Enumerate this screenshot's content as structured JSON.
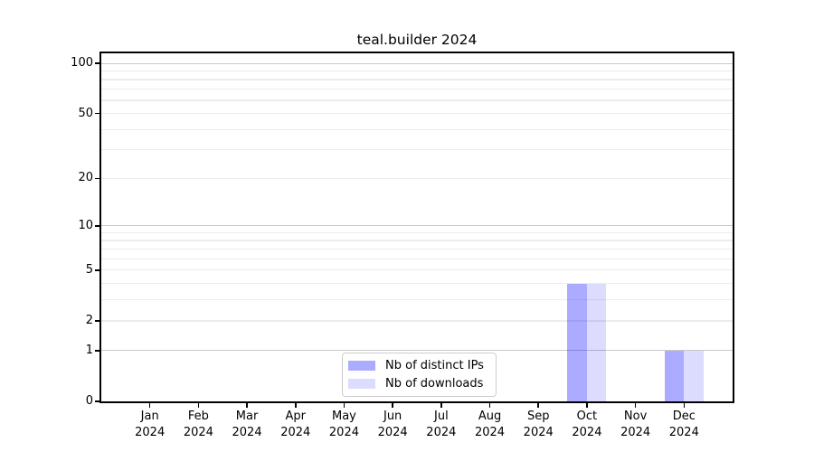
{
  "chart_data": {
    "type": "bar",
    "title": "teal.builder 2024",
    "categories": [
      "Jan 2024",
      "Feb 2024",
      "Mar 2024",
      "Apr 2024",
      "May 2024",
      "Jun 2024",
      "Jul 2024",
      "Aug 2024",
      "Sep 2024",
      "Oct 2024",
      "Nov 2024",
      "Dec 2024"
    ],
    "series": [
      {
        "name": "Nb of distinct IPs",
        "color": "rgba(0,0,255,0.33)",
        "values": [
          0,
          0,
          0,
          0,
          0,
          0,
          0,
          0,
          0,
          4,
          0,
          1
        ]
      },
      {
        "name": "Nb of downloads",
        "color": "rgba(0,0,255,0.137)",
        "values": [
          0,
          0,
          0,
          0,
          0,
          0,
          0,
          0,
          0,
          4,
          0,
          1
        ]
      }
    ],
    "xlabel": "",
    "ylabel": "",
    "y_axis": {
      "scale": "log1p",
      "tick_values": [
        0,
        1,
        2,
        5,
        10,
        20,
        50,
        100
      ],
      "max": 115,
      "major_gridlines": [
        1,
        10,
        100
      ],
      "minor_gridlines": [
        2,
        3,
        4,
        5,
        6,
        7,
        8,
        9,
        20,
        30,
        40,
        50,
        60,
        70,
        80,
        90
      ]
    },
    "legend": {
      "entries": [
        "Nb of distinct IPs",
        "Nb of downloads"
      ],
      "position": "lower center"
    },
    "grid": "on",
    "colors": {
      "major_grid": "#c9c9c9",
      "minor_grid": "#ececec",
      "spine": "#000000",
      "background": "#ffffff",
      "legend_border": "#cccccc",
      "bar_distinct_ips_rendered": "#aaaaff",
      "bar_downloads_rendered": "#dcdcff"
    }
  }
}
